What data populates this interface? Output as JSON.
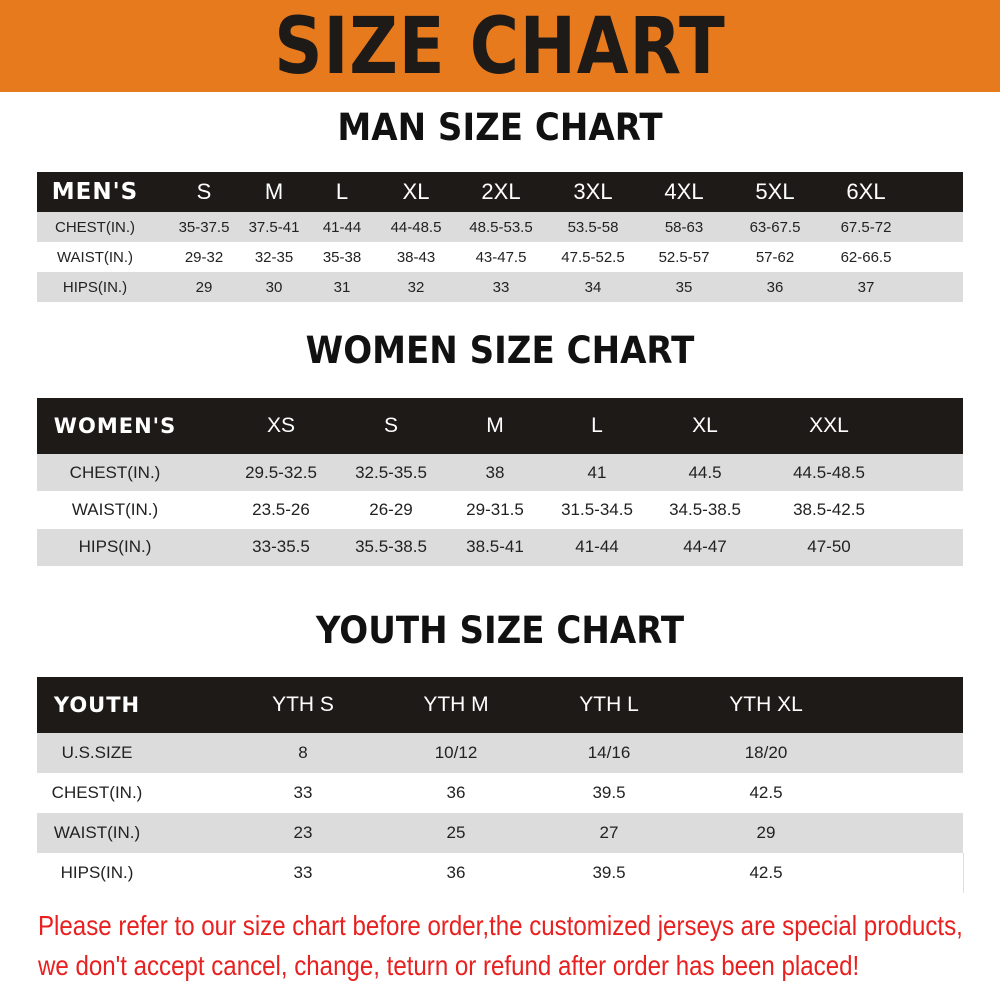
{
  "banner": {
    "title": "SIZE CHART",
    "color": "#E87A1E"
  },
  "men": {
    "title": "MAN SIZE CHART",
    "header": [
      "MEN'S",
      "S",
      "M",
      "L",
      "XL",
      "2XL",
      "3XL",
      "4XL",
      "5XL",
      "6XL"
    ],
    "rows": [
      [
        "CHEST(IN.)",
        "35-37.5",
        "37.5-41",
        "41-44",
        "44-48.5",
        "48.5-53.5",
        "53.5-58",
        "58-63",
        "63-67.5",
        "67.5-72"
      ],
      [
        "WAIST(IN.)",
        "29-32",
        "32-35",
        "35-38",
        "38-43",
        "43-47.5",
        "47.5-52.5",
        "52.5-57",
        "57-62",
        "62-66.5"
      ],
      [
        "HIPS(IN.)",
        "29",
        "30",
        "31",
        "32",
        "33",
        "34",
        "35",
        "36",
        "37"
      ]
    ]
  },
  "women": {
    "title": "WOMEN SIZE CHART",
    "header": [
      "WOMEN'S",
      "XS",
      "S",
      "M",
      "L",
      "XL",
      "XXL"
    ],
    "rows": [
      [
        "CHEST(IN.)",
        "29.5-32.5",
        "32.5-35.5",
        "38",
        "41",
        "44.5",
        "44.5-48.5"
      ],
      [
        "WAIST(IN.)",
        "23.5-26",
        "26-29",
        "29-31.5",
        "31.5-34.5",
        "34.5-38.5",
        "38.5-42.5"
      ],
      [
        "HIPS(IN.)",
        "33-35.5",
        "35.5-38.5",
        "38.5-41",
        "41-44",
        "44-47",
        "47-50"
      ]
    ]
  },
  "youth": {
    "title": "YOUTH SIZE CHART",
    "header": [
      "YOUTH",
      "YTH S",
      "YTH M",
      "YTH L",
      "YTH XL"
    ],
    "rows": [
      [
        "U.S.SIZE",
        "8",
        "10/12",
        "14/16",
        "18/20"
      ],
      [
        "CHEST(IN.)",
        "33",
        "36",
        "39.5",
        "42.5"
      ],
      [
        "WAIST(IN.)",
        "23",
        "25",
        "27",
        "29"
      ],
      [
        "HIPS(IN.)",
        "33",
        "36",
        "39.5",
        "42.5"
      ]
    ]
  },
  "notice": {
    "line1": "Please refer to our size chart before order,the customized jerseys are special products,",
    "line2": "we don't accept cancel, change, teturn or refund after order has been placed!",
    "color": "#e8201f"
  }
}
